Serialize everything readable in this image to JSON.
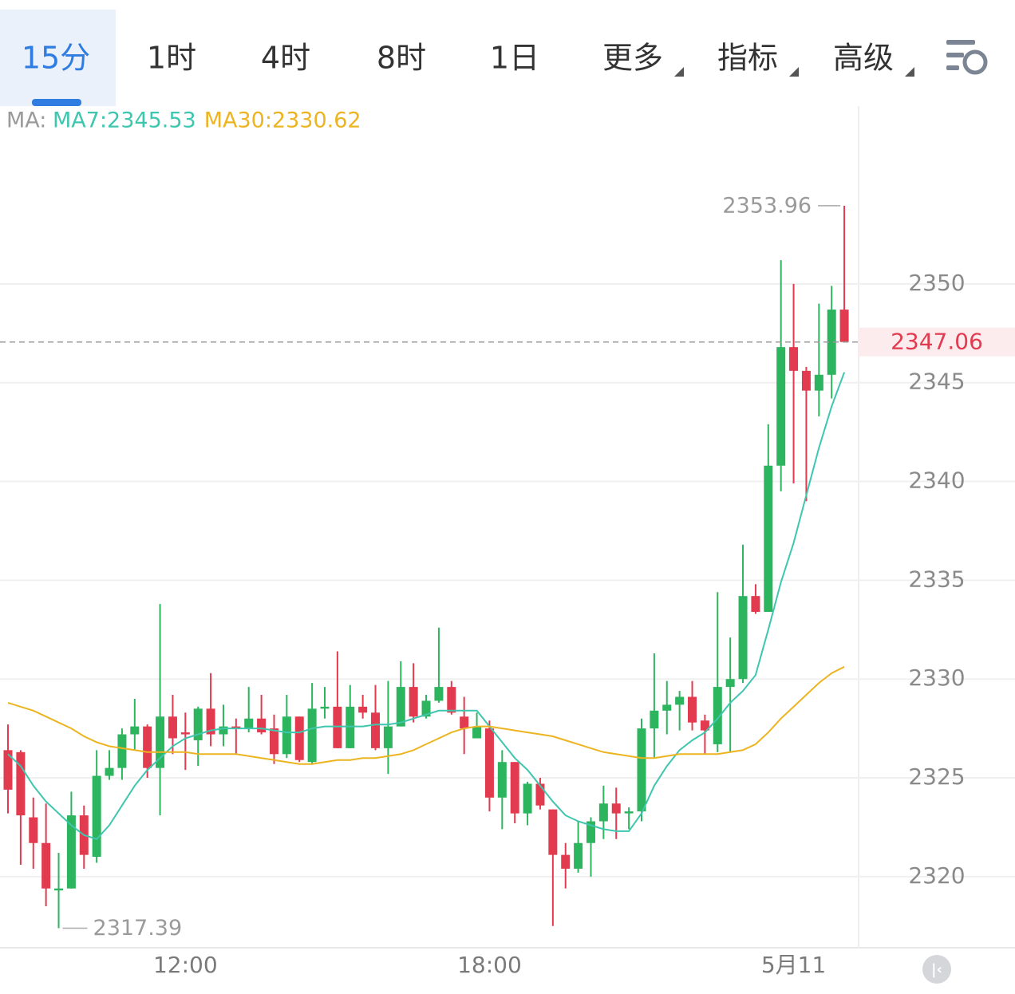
{
  "tabs": [
    {
      "label": "15分",
      "active": true,
      "dropdown": false
    },
    {
      "label": "1时",
      "active": false,
      "dropdown": false
    },
    {
      "label": "4时",
      "active": false,
      "dropdown": false
    },
    {
      "label": "8时",
      "active": false,
      "dropdown": false
    },
    {
      "label": "1日",
      "active": false,
      "dropdown": false
    },
    {
      "label": "更多",
      "active": false,
      "dropdown": true
    },
    {
      "label": "指标",
      "active": false,
      "dropdown": true
    },
    {
      "label": "高级",
      "active": false,
      "dropdown": true
    }
  ],
  "chart_data": {
    "type": "candlestick",
    "legend_title": "MA:",
    "categories": [
      null,
      null,
      null,
      null,
      null,
      null,
      null,
      null,
      null,
      null,
      null,
      null,
      null,
      null,
      "12:00",
      null,
      null,
      null,
      null,
      null,
      null,
      null,
      null,
      null,
      null,
      null,
      null,
      null,
      null,
      null,
      null,
      null,
      null,
      null,
      null,
      null,
      null,
      null,
      "18:00",
      null,
      null,
      null,
      null,
      null,
      null,
      null,
      null,
      null,
      null,
      null,
      null,
      null,
      null,
      null,
      null,
      null,
      null,
      null,
      null,
      null,
      null,
      null,
      "5月11",
      null,
      null,
      null,
      null
    ],
    "open": [
      2326.4,
      2326.3,
      2323.0,
      2321.7,
      2319.3,
      2319.4,
      2323.1,
      2321.0,
      2325.1,
      2325.5,
      2327.2,
      2327.6,
      2325.5,
      2328.1,
      2327.3,
      2326.9,
      2328.5,
      2327.2,
      2327.6,
      2327.5,
      2328.0,
      2327.5,
      2326.2,
      2328.1,
      2325.8,
      2328.5,
      2328.6,
      2326.5,
      2328.6,
      2328.3,
      2326.5,
      2327.6,
      2329.6,
      2328.1,
      2328.9,
      2329.6,
      2328.1,
      2327.0,
      2327.5,
      2324.0,
      2325.8,
      2323.2,
      2324.7,
      2323.4,
      2321.1,
      2320.4,
      2321.7,
      2322.8,
      2323.7,
      2323.2,
      2323.3,
      2327.5,
      2328.4,
      2328.7,
      2329.1,
      2327.9,
      2326.7,
      2329.6,
      2330.0,
      2334.2,
      2333.4,
      2340.8,
      2346.8,
      2345.6,
      2344.6,
      2345.4,
      2348.7
    ],
    "high": [
      2327.7,
      2326.4,
      2324.0,
      2323.7,
      2321.2,
      2324.3,
      2323.6,
      2326.4,
      2326.4,
      2327.5,
      2329.0,
      2327.7,
      2333.8,
      2329.2,
      2328.3,
      2328.6,
      2330.3,
      2328.7,
      2328.0,
      2329.6,
      2329.2,
      2328.2,
      2329.2,
      2328.1,
      2329.8,
      2329.6,
      2331.4,
      2329.7,
      2329.2,
      2329.7,
      2329.9,
      2330.9,
      2330.8,
      2329.2,
      2332.6,
      2329.9,
      2329.1,
      2328.3,
      2327.9,
      2326.4,
      2325.8,
      2324.8,
      2325.0,
      2323.4,
      2321.7,
      2322.8,
      2323.0,
      2324.6,
      2324.5,
      2323.5,
      2328.0,
      2331.3,
      2329.9,
      2329.4,
      2329.9,
      2328.2,
      2334.4,
      2332.1,
      2336.8,
      2334.8,
      2342.9,
      2351.2,
      2350.0,
      2345.8,
      2349.0,
      2349.9,
      2353.96
    ],
    "low": [
      2323.2,
      2320.6,
      2320.4,
      2318.5,
      2317.39,
      2319.4,
      2320.4,
      2320.7,
      2324.9,
      2324.9,
      2326.4,
      2325.0,
      2323.1,
      2326.2,
      2325.4,
      2325.6,
      2326.6,
      2326.6,
      2326.2,
      2327.3,
      2327.2,
      2325.7,
      2326.0,
      2325.8,
      2325.7,
      2328.0,
      2326.5,
      2326.5,
      2328.0,
      2326.4,
      2325.2,
      2327.6,
      2327.8,
      2328.0,
      2328.8,
      2328.2,
      2326.2,
      2327.0,
      2323.3,
      2322.4,
      2322.7,
      2322.6,
      2323.4,
      2317.5,
      2319.4,
      2320.2,
      2320.0,
      2321.9,
      2321.9,
      2322.4,
      2322.8,
      2326.0,
      2327.2,
      2327.4,
      2327.4,
      2326.2,
      2326.3,
      2326.3,
      2329.8,
      2333.3,
      2333.4,
      2339.5,
      2339.9,
      2339.0,
      2343.3,
      2344.2,
      2347.06
    ],
    "close": [
      2324.4,
      2323.1,
      2321.7,
      2319.4,
      2319.4,
      2323.1,
      2321.1,
      2325.1,
      2325.5,
      2327.2,
      2327.6,
      2325.5,
      2328.1,
      2327.0,
      2327.2,
      2328.5,
      2327.2,
      2327.6,
      2327.5,
      2328.0,
      2327.3,
      2326.2,
      2328.1,
      2325.9,
      2328.5,
      2328.6,
      2326.5,
      2328.6,
      2328.3,
      2326.5,
      2327.6,
      2329.6,
      2328.1,
      2328.9,
      2329.6,
      2328.3,
      2327.5,
      2327.6,
      2324.0,
      2325.8,
      2323.2,
      2324.7,
      2323.6,
      2321.1,
      2320.4,
      2321.7,
      2322.8,
      2323.7,
      2323.2,
      2323.3,
      2327.5,
      2328.4,
      2328.7,
      2329.1,
      2327.8,
      2327.4,
      2329.6,
      2330.0,
      2334.2,
      2333.4,
      2340.8,
      2346.8,
      2345.6,
      2344.6,
      2345.4,
      2348.7,
      2347.06
    ],
    "up_color": "#2db45e",
    "down_color": "#e23a4e",
    "series": [
      {
        "name": "MA7:2345.53",
        "color": "#3ec6ae",
        "values": [
          2326.2,
          2325.6,
          2324.6,
          2323.8,
          2323.2,
          2322.6,
          2322.1,
          2321.9,
          2322.6,
          2323.6,
          2324.6,
          2325.4,
          2326.0,
          2326.6,
          2327.0,
          2327.2,
          2327.4,
          2327.5,
          2327.5,
          2327.5,
          2327.5,
          2327.4,
          2327.3,
          2327.3,
          2327.5,
          2327.6,
          2327.6,
          2327.6,
          2327.6,
          2327.7,
          2327.7,
          2327.8,
          2328.0,
          2328.2,
          2328.4,
          2328.4,
          2328.4,
          2328.4,
          2327.6,
          2326.8,
          2326.0,
          2325.4,
          2324.6,
          2323.8,
          2323.1,
          2322.8,
          2322.6,
          2322.4,
          2322.3,
          2322.3,
          2323.2,
          2324.6,
          2325.6,
          2326.4,
          2326.9,
          2327.3,
          2328.0,
          2328.8,
          2329.4,
          2330.2,
          2332.5,
          2334.9,
          2336.9,
          2339.3,
          2341.7,
          2343.8,
          2345.53
        ]
      },
      {
        "name": "MA30:2330.62",
        "color": "#ecb420",
        "values": [
          2328.8,
          2328.6,
          2328.4,
          2328.1,
          2327.8,
          2327.5,
          2327.1,
          2326.8,
          2326.6,
          2326.5,
          2326.4,
          2326.3,
          2326.3,
          2326.3,
          2326.3,
          2326.2,
          2326.2,
          2326.2,
          2326.2,
          2326.1,
          2326.0,
          2325.9,
          2325.8,
          2325.7,
          2325.7,
          2325.8,
          2325.9,
          2325.9,
          2326.0,
          2326.0,
          2326.1,
          2326.2,
          2326.4,
          2326.7,
          2327.0,
          2327.3,
          2327.5,
          2327.6,
          2327.6,
          2327.5,
          2327.4,
          2327.3,
          2327.2,
          2327.1,
          2326.9,
          2326.7,
          2326.5,
          2326.3,
          2326.2,
          2326.1,
          2326.0,
          2326.0,
          2326.1,
          2326.2,
          2326.2,
          2326.2,
          2326.2,
          2326.3,
          2326.4,
          2326.7,
          2327.3,
          2328.0,
          2328.6,
          2329.2,
          2329.8,
          2330.3,
          2330.62
        ]
      }
    ],
    "ylim": [
      2316.4,
      2359
    ],
    "yticks": [
      2320,
      2325,
      2330,
      2335,
      2340,
      2345,
      2350
    ],
    "grid": true,
    "y_axis_side": "right"
  }
}
